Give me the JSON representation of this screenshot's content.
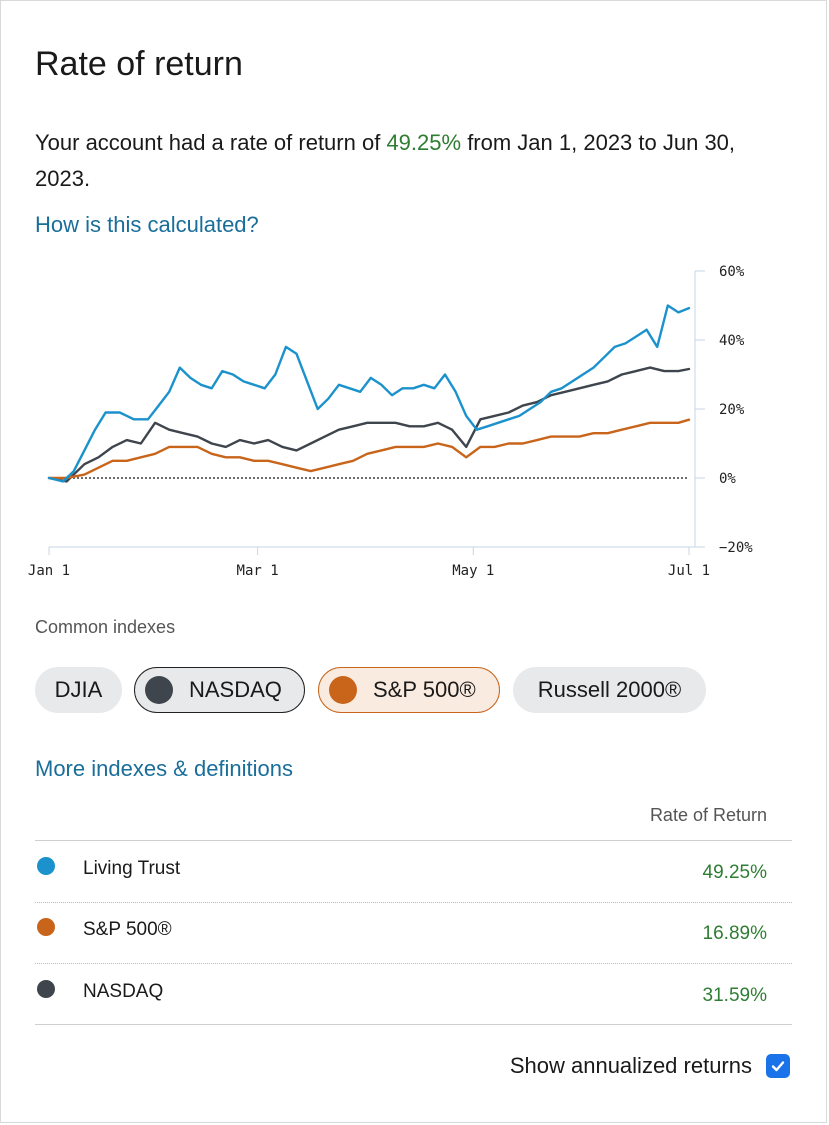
{
  "header": {
    "title": "Rate of return"
  },
  "summary": {
    "prefix": "Your account had a rate of return of",
    "rate": "49.25%",
    "suffix": "from Jan 1, 2023 to Jun 30, 2023."
  },
  "links": {
    "calc": "How is this calculated?",
    "more": "More indexes & definitions"
  },
  "colors": {
    "account": "#1b92cc",
    "sp500": "#c8651b",
    "nasdaq": "#3f454d",
    "positive": "#2e7d32",
    "link": "#1a6e9a"
  },
  "chart_data": {
    "type": "line",
    "ylim": [
      -20,
      60
    ],
    "yticks": [
      "60%",
      "40%",
      "20%",
      "0%",
      "−20%"
    ],
    "ytick_values": [
      60,
      40,
      20,
      0,
      -20
    ],
    "xlim": [
      0,
      181
    ],
    "xticks": [
      "Jan 1",
      "Mar 1",
      "May 1",
      "Jul 1"
    ],
    "xtick_values": [
      0,
      59,
      120,
      181
    ],
    "reference_line": 0,
    "series": [
      {
        "name": "NASDAQ",
        "color": "#3f454d",
        "x": [
          0,
          5,
          10,
          14,
          18,
          22,
          26,
          30,
          34,
          38,
          42,
          46,
          50,
          54,
          58,
          62,
          66,
          70,
          74,
          78,
          82,
          86,
          90,
          94,
          98,
          102,
          106,
          110,
          114,
          118,
          122,
          126,
          130,
          134,
          138,
          142,
          146,
          150,
          154,
          158,
          162,
          166,
          170,
          174,
          178,
          181
        ],
        "values": [
          0,
          -1,
          4,
          6,
          9,
          11,
          10,
          16,
          14,
          13,
          12,
          10,
          9,
          11,
          10,
          11,
          9,
          8,
          10,
          12,
          14,
          15,
          16,
          16,
          16,
          15,
          15,
          16,
          14,
          9,
          17,
          18,
          19,
          21,
          22,
          24,
          25,
          26,
          27,
          28,
          30,
          31,
          32,
          31,
          31,
          31.59
        ]
      },
      {
        "name": "S&P 500®",
        "color": "#c8651b",
        "x": [
          0,
          5,
          10,
          14,
          18,
          22,
          26,
          30,
          34,
          38,
          42,
          46,
          50,
          54,
          58,
          62,
          66,
          70,
          74,
          78,
          82,
          86,
          90,
          94,
          98,
          102,
          106,
          110,
          114,
          118,
          122,
          126,
          130,
          134,
          138,
          142,
          146,
          150,
          154,
          158,
          162,
          166,
          170,
          174,
          178,
          181
        ],
        "values": [
          0,
          0,
          1,
          3,
          5,
          5,
          6,
          7,
          9,
          9,
          9,
          7,
          6,
          6,
          5,
          5,
          4,
          3,
          2,
          3,
          4,
          5,
          7,
          8,
          9,
          9,
          9,
          10,
          9,
          6,
          9,
          9,
          10,
          10,
          11,
          12,
          12,
          12,
          13,
          13,
          14,
          15,
          16,
          16,
          16,
          16.89
        ]
      },
      {
        "name": "Living Trust",
        "color": "#1b92cc",
        "x": [
          0,
          4,
          7,
          10,
          13,
          16,
          20,
          24,
          28,
          31,
          34,
          37,
          40,
          43,
          46,
          49,
          52,
          55,
          58,
          61,
          64,
          67,
          70,
          73,
          76,
          79,
          82,
          85,
          88,
          91,
          94,
          97,
          100,
          103,
          106,
          109,
          112,
          115,
          118,
          121,
          124,
          127,
          130,
          133,
          136,
          139,
          142,
          145,
          148,
          151,
          154,
          157,
          160,
          163,
          166,
          169,
          172,
          175,
          178,
          181
        ],
        "values": [
          0,
          -1,
          2,
          8,
          14,
          19,
          19,
          17,
          17,
          21,
          25,
          32,
          29,
          27,
          26,
          31,
          30,
          28,
          27,
          26,
          30,
          38,
          36,
          28,
          20,
          23,
          27,
          26,
          25,
          29,
          27,
          24,
          26,
          26,
          27,
          26,
          30,
          25,
          18,
          14,
          15,
          16,
          17,
          18,
          20,
          22,
          25,
          26,
          28,
          30,
          32,
          35,
          38,
          39,
          41,
          43,
          38,
          50,
          48,
          49.25
        ]
      }
    ]
  },
  "indexes": {
    "label": "Common indexes",
    "chips": {
      "djia": "DJIA",
      "nasdaq": "NASDAQ",
      "sp": "S&P 500®",
      "russell": "Russell 2000®"
    }
  },
  "table": {
    "header": "Rate of Return",
    "rows": [
      {
        "name": "Living Trust",
        "value": "49.25%",
        "color": "#1b92cc"
      },
      {
        "name": "S&P 500®",
        "value": "16.89%",
        "color": "#c8651b"
      },
      {
        "name": "NASDAQ",
        "value": "31.59%",
        "color": "#3f454d"
      }
    ]
  },
  "footer": {
    "annualized_label": "Show annualized returns",
    "annualized_checked": true
  }
}
